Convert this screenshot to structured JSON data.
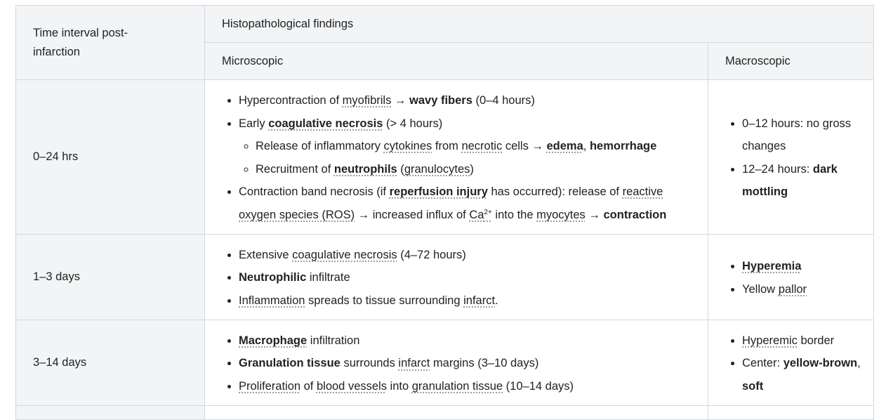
{
  "header": {
    "interval": "Time interval post-infarction",
    "findings": "Histopathological findings",
    "microscopic": "Microscopic",
    "macroscopic": "Macroscopic"
  },
  "rows": [
    {
      "interval": "0–24 hrs",
      "micro": {
        "i1": [
          "Hypercontraction of ",
          "myofibrils",
          " → ",
          "wavy fibers",
          " (0–4 hours)"
        ],
        "i2": [
          "Early ",
          "coagulative necrosis",
          " (> 4 hours)"
        ],
        "i2a": [
          "Release of inflammatory ",
          "cytokines",
          " from ",
          "necrotic",
          " cells → ",
          "edema",
          ", ",
          "hemorrhage"
        ],
        "i2b": [
          "Recruitment of ",
          "neutrophils",
          " (",
          "granulocytes",
          ")"
        ],
        "i3": [
          "Contraction band necrosis (if ",
          "reperfusion injury",
          " has occurred): release of ",
          "reactive oxygen species (ROS)",
          " → increased influx of ",
          "Ca",
          "2+",
          " into the ",
          "myocytes",
          " → ",
          "contraction"
        ]
      },
      "macro": {
        "i1": [
          "0–12 hours: no gross changes"
        ],
        "i2": [
          "12–24 hours: ",
          "dark mottling"
        ]
      }
    },
    {
      "interval": "1–3 days",
      "micro": {
        "i1": [
          "Extensive ",
          "coagulative necrosis",
          " (4–72 hours)"
        ],
        "i2": [
          "Neutrophilic",
          " infiltrate"
        ],
        "i3": [
          "Inflammation",
          " spreads to tissue surrounding ",
          "infarct",
          "."
        ]
      },
      "macro": {
        "i1": [
          "Hyperemia"
        ],
        "i2": [
          "Yellow ",
          "pallor"
        ]
      }
    },
    {
      "interval": "3–14 days",
      "micro": {
        "i1": [
          "Macrophage",
          " infiltration"
        ],
        "i2": [
          "Granulation tissue",
          " surrounds ",
          "infarct",
          " margins (3–10 days)"
        ],
        "i3": [
          "Proliferation",
          " of ",
          "blood vessels",
          " into ",
          "granulation tissue",
          " (10–14 days)"
        ]
      },
      "macro": {
        "i1": [
          "Hyperemic",
          " border"
        ],
        "i2": [
          "Center: ",
          "yellow-brown",
          ", ",
          "soft"
        ]
      }
    }
  ]
}
